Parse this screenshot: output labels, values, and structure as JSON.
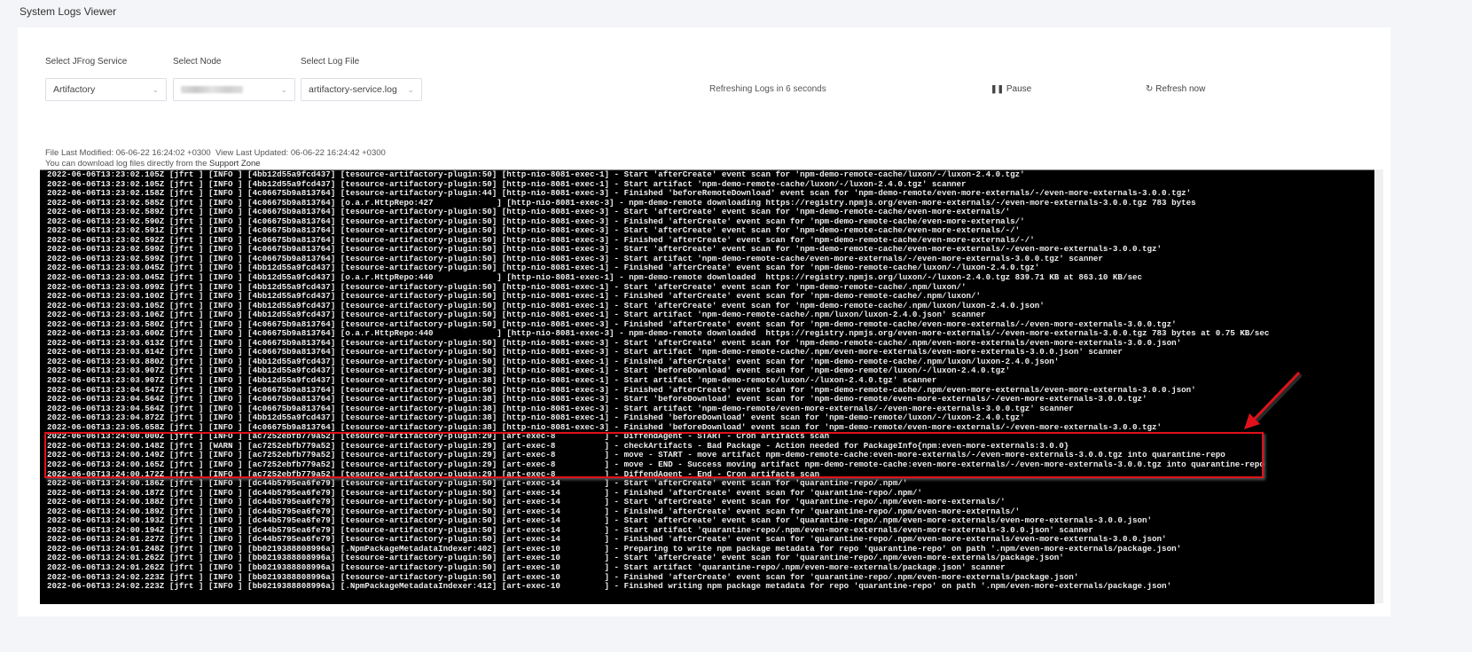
{
  "title": "System Logs Viewer",
  "filters": {
    "service": {
      "label": "Select JFrog Service",
      "value": "Artifactory"
    },
    "node": {
      "label": "Select Node",
      "value": ""
    },
    "logfile": {
      "label": "Select Log File",
      "value": "artifactory-service.log"
    }
  },
  "refresh": {
    "status": "Refreshing Logs in 6 seconds",
    "pause": "Pause",
    "refresh_now": "Refresh now"
  },
  "meta": {
    "file_modified": "File Last Modified: 06-06-22 16:24:02 +0300",
    "view_updated": "View Last Updated: 06-06-22 16:24:42 +0300",
    "download_text": "You can download log files directly from the ",
    "download_link": "Support Zone"
  },
  "highlight_color": "#e0111a",
  "log_lines": [
    "2022-06-06T13:23:02.105Z [jfrt ] [INFO ] [4bb12d55a9fcd437] [tesource-artifactory-plugin:50] [http-nio-8081-exec-1] - Start 'afterCreate' event scan for 'npm-demo-remote-cache/luxon/-/luxon-2.4.0.tgz'",
    "2022-06-06T13:23:02.105Z [jfrt ] [INFO ] [4bb12d55a9fcd437] [tesource-artifactory-plugin:50] [http-nio-8081-exec-1] - Start artifact 'npm-demo-remote-cache/luxon/-/luxon-2.4.0.tgz' scanner",
    "2022-06-06T13:23:02.158Z [jfrt ] [INFO ] [4c06675b9a813764] [tesource-artifactory-plugin:44] [http-nio-8081-exec-3] - Finished 'beforeRemoteDownload' event scan for 'npm-demo-remote/even-more-externals/-/even-more-externals-3.0.0.tgz'",
    "2022-06-06T13:23:02.585Z [jfrt ] [INFO ] [4c06675b9a813764] [o.a.r.HttpRepo:427             ] [http-nio-8081-exec-3] - npm-demo-remote downloading https://registry.npmjs.org/even-more-externals/-/even-more-externals-3.0.0.tgz 783 bytes",
    "2022-06-06T13:23:02.589Z [jfrt ] [INFO ] [4c06675b9a813764] [tesource-artifactory-plugin:50] [http-nio-8081-exec-3] - Start 'afterCreate' event scan for 'npm-demo-remote-cache/even-more-externals/'",
    "2022-06-06T13:23:02.590Z [jfrt ] [INFO ] [4c06675b9a813764] [tesource-artifactory-plugin:50] [http-nio-8081-exec-3] - Finished 'afterCreate' event scan for 'npm-demo-remote-cache/even-more-externals/'",
    "2022-06-06T13:23:02.591Z [jfrt ] [INFO ] [4c06675b9a813764] [tesource-artifactory-plugin:50] [http-nio-8081-exec-3] - Start 'afterCreate' event scan for 'npm-demo-remote-cache/even-more-externals/-/'",
    "2022-06-06T13:23:02.592Z [jfrt ] [INFO ] [4c06675b9a813764] [tesource-artifactory-plugin:50] [http-nio-8081-exec-3] - Finished 'afterCreate' event scan for 'npm-demo-remote-cache/even-more-externals/-/'",
    "2022-06-06T13:23:02.599Z [jfrt ] [INFO ] [4c06675b9a813764] [tesource-artifactory-plugin:50] [http-nio-8081-exec-3] - Start 'afterCreate' event scan for 'npm-demo-remote-cache/even-more-externals/-/even-more-externals-3.0.0.tgz'",
    "2022-06-06T13:23:02.599Z [jfrt ] [INFO ] [4c06675b9a813764] [tesource-artifactory-plugin:50] [http-nio-8081-exec-3] - Start artifact 'npm-demo-remote-cache/even-more-externals/-/even-more-externals-3.0.0.tgz' scanner",
    "2022-06-06T13:23:03.045Z [jfrt ] [INFO ] [4bb12d55a9fcd437] [tesource-artifactory-plugin:50] [http-nio-8081-exec-1] - Finished 'afterCreate' event scan for 'npm-demo-remote-cache/luxon/-/luxon-2.4.0.tgz'",
    "2022-06-06T13:23:03.045Z [jfrt ] [INFO ] [4bb12d55a9fcd437] [o.a.r.HttpRepo:440             ] [http-nio-8081-exec-1] - npm-demo-remote downloaded  https://registry.npmjs.org/luxon/-/luxon-2.4.0.tgz 839.71 KB at 863.10 KB/sec",
    "2022-06-06T13:23:03.099Z [jfrt ] [INFO ] [4bb12d55a9fcd437] [tesource-artifactory-plugin:50] [http-nio-8081-exec-1] - Start 'afterCreate' event scan for 'npm-demo-remote-cache/.npm/luxon/'",
    "2022-06-06T13:23:03.100Z [jfrt ] [INFO ] [4bb12d55a9fcd437] [tesource-artifactory-plugin:50] [http-nio-8081-exec-1] - Finished 'afterCreate' event scan for 'npm-demo-remote-cache/.npm/luxon/'",
    "2022-06-06T13:23:03.105Z [jfrt ] [INFO ] [4bb12d55a9fcd437] [tesource-artifactory-plugin:50] [http-nio-8081-exec-1] - Start 'afterCreate' event scan for 'npm-demo-remote-cache/.npm/luxon/luxon-2.4.0.json'",
    "2022-06-06T13:23:03.106Z [jfrt ] [INFO ] [4bb12d55a9fcd437] [tesource-artifactory-plugin:50] [http-nio-8081-exec-1] - Start artifact 'npm-demo-remote-cache/.npm/luxon/luxon-2.4.0.json' scanner",
    "2022-06-06T13:23:03.580Z [jfrt ] [INFO ] [4c06675b9a813764] [tesource-artifactory-plugin:50] [http-nio-8081-exec-3] - Finished 'afterCreate' event scan for 'npm-demo-remote-cache/even-more-externals/-/even-more-externals-3.0.0.tgz'",
    "2022-06-06T13:23:03.600Z [jfrt ] [INFO ] [4c06675b9a813764] [o.a.r.HttpRepo:440             ] [http-nio-8081-exec-3] - npm-demo-remote downloaded  https://registry.npmjs.org/even-more-externals/-/even-more-externals-3.0.0.tgz 783 bytes at 0.75 KB/sec",
    "2022-06-06T13:23:03.613Z [jfrt ] [INFO ] [4c06675b9a813764] [tesource-artifactory-plugin:50] [http-nio-8081-exec-3] - Start 'afterCreate' event scan for 'npm-demo-remote-cache/.npm/even-more-externals/even-more-externals-3.0.0.json'",
    "2022-06-06T13:23:03.614Z [jfrt ] [INFO ] [4c06675b9a813764] [tesource-artifactory-plugin:50] [http-nio-8081-exec-3] - Start artifact 'npm-demo-remote-cache/.npm/even-more-externals/even-more-externals-3.0.0.json' scanner",
    "2022-06-06T13:23:03.880Z [jfrt ] [INFO ] [4bb12d55a9fcd437] [tesource-artifactory-plugin:50] [http-nio-8081-exec-1] - Finished 'afterCreate' event scan for 'npm-demo-remote-cache/.npm/luxon/luxon-2.4.0.json'",
    "2022-06-06T13:23:03.907Z [jfrt ] [INFO ] [4bb12d55a9fcd437] [tesource-artifactory-plugin:38] [http-nio-8081-exec-1] - Start 'beforeDownload' event scan for 'npm-demo-remote/luxon/-/luxon-2.4.0.tgz'",
    "2022-06-06T13:23:03.907Z [jfrt ] [INFO ] [4bb12d55a9fcd437] [tesource-artifactory-plugin:38] [http-nio-8081-exec-1] - Start artifact 'npm-demo-remote/luxon/-/luxon-2.4.0.tgz' scanner",
    "2022-06-06T13:23:04.547Z [jfrt ] [INFO ] [4c06675b9a813764] [tesource-artifactory-plugin:50] [http-nio-8081-exec-3] - Finished 'afterCreate' event scan for 'npm-demo-remote-cache/.npm/even-more-externals/even-more-externals-3.0.0.json'",
    "2022-06-06T13:23:04.564Z [jfrt ] [INFO ] [4c06675b9a813764] [tesource-artifactory-plugin:38] [http-nio-8081-exec-3] - Start 'beforeDownload' event scan for 'npm-demo-remote/even-more-externals/-/even-more-externals-3.0.0.tgz'",
    "2022-06-06T13:23:04.564Z [jfrt ] [INFO ] [4c06675b9a813764] [tesource-artifactory-plugin:38] [http-nio-8081-exec-3] - Start artifact 'npm-demo-remote/even-more-externals/-/even-more-externals-3.0.0.tgz' scanner",
    "2022-06-06T13:23:04.872Z [jfrt ] [INFO ] [4bb12d55a9fcd437] [tesource-artifactory-plugin:38] [http-nio-8081-exec-1] - Finished 'beforeDownload' event scan for 'npm-demo-remote/luxon/-/luxon-2.4.0.tgz'",
    "2022-06-06T13:23:05.658Z [jfrt ] [INFO ] [4c06675b9a813764] [tesource-artifactory-plugin:38] [http-nio-8081-exec-3] - Finished 'beforeDownload' event scan for 'npm-demo-remote/even-more-externals/-/even-more-externals-3.0.0.tgz'",
    "2022-06-06T13:24:00.000Z [jfrt ] [INFO ] [ac7252ebfb779a52] [tesource-artifactory-plugin:29] [art-exec-8          ] - DiffendAgent - START - Cron artifacts scan",
    "2022-06-06T13:24:00.148Z [jfrt ] [WARN ] [ac7252ebfb779a52] [tesource-artifactory-plugin:29] [art-exec-8          ] - checkArtifacts - Bad Package - Action needed for PackageInfo{npm:even-more-externals:3.0.0}",
    "2022-06-06T13:24:00.149Z [jfrt ] [INFO ] [ac7252ebfb779a52] [tesource-artifactory-plugin:29] [art-exec-8          ] - move - START - move artifact npm-demo-remote-cache:even-more-externals/-/even-more-externals-3.0.0.tgz into quarantine-repo",
    "2022-06-06T13:24:00.165Z [jfrt ] [INFO ] [ac7252ebfb779a52] [tesource-artifactory-plugin:29] [art-exec-8          ] - move - END - Success moving artifact npm-demo-remote-cache:even-more-externals/-/even-more-externals-3.0.0.tgz into quarantine-repo",
    "2022-06-06T13:24:00.172Z [jfrt ] [INFO ] [ac7252ebfb779a52] [tesource-artifactory-plugin:29] [art-exec-8          ] - DiffendAgent - End - Cron artifacts scan",
    "2022-06-06T13:24:00.186Z [jfrt ] [INFO ] [dc44b5795ea6fe79] [tesource-artifactory-plugin:50] [art-exec-14         ] - Start 'afterCreate' event scan for 'quarantine-repo/.npm/'",
    "2022-06-06T13:24:00.187Z [jfrt ] [INFO ] [dc44b5795ea6fe79] [tesource-artifactory-plugin:50] [art-exec-14         ] - Finished 'afterCreate' event scan for 'quarantine-repo/.npm/'",
    "2022-06-06T13:24:00.188Z [jfrt ] [INFO ] [dc44b5795ea6fe79] [tesource-artifactory-plugin:50] [art-exec-14         ] - Start 'afterCreate' event scan for 'quarantine-repo/.npm/even-more-externals/'",
    "2022-06-06T13:24:00.189Z [jfrt ] [INFO ] [dc44b5795ea6fe79] [tesource-artifactory-plugin:50] [art-exec-14         ] - Finished 'afterCreate' event scan for 'quarantine-repo/.npm/even-more-externals/'",
    "2022-06-06T13:24:00.193Z [jfrt ] [INFO ] [dc44b5795ea6fe79] [tesource-artifactory-plugin:50] [art-exec-14         ] - Start 'afterCreate' event scan for 'quarantine-repo/.npm/even-more-externals/even-more-externals-3.0.0.json'",
    "2022-06-06T13:24:00.194Z [jfrt ] [INFO ] [dc44b5795ea6fe79] [tesource-artifactory-plugin:50] [art-exec-14         ] - Start artifact 'quarantine-repo/.npm/even-more-externals/even-more-externals-3.0.0.json' scanner",
    "2022-06-06T13:24:01.227Z [jfrt ] [INFO ] [dc44b5795ea6fe79] [tesource-artifactory-plugin:50] [art-exec-14         ] - Finished 'afterCreate' event scan for 'quarantine-repo/.npm/even-more-externals/even-more-externals-3.0.0.json'",
    "2022-06-06T13:24:01.248Z [jfrt ] [INFO ] [bb0219388808996a] [.NpmPackageMetadataIndexer:402] [art-exec-10         ] - Preparing to write npm package metadata for repo 'quarantine-repo' on path '.npm/even-more-externals/package.json'",
    "2022-06-06T13:24:01.262Z [jfrt ] [INFO ] [bb0219388808996a] [tesource-artifactory-plugin:50] [art-exec-10         ] - Start 'afterCreate' event scan for 'quarantine-repo/.npm/even-more-externals/package.json'",
    "2022-06-06T13:24:01.262Z [jfrt ] [INFO ] [bb0219388808996a] [tesource-artifactory-plugin:50] [art-exec-10         ] - Start artifact 'quarantine-repo/.npm/even-more-externals/package.json' scanner",
    "2022-06-06T13:24:02.223Z [jfrt ] [INFO ] [bb0219388808996a] [tesource-artifactory-plugin:50] [art-exec-10         ] - Finished 'afterCreate' event scan for 'quarantine-repo/.npm/even-more-externals/package.json'",
    "2022-06-06T13:24:02.223Z [jfrt ] [INFO ] [bb0219388808996a] [.NpmPackageMetadataIndexer:412] [art-exec-10         ] - Finished writing npm package metadata for repo 'quarantine-repo' on path '.npm/even-more-externals/package.json'"
  ]
}
